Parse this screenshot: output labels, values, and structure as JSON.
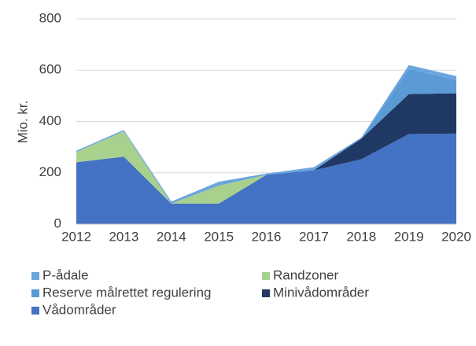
{
  "chart_data": {
    "type": "stacked-area",
    "y_label": "Mio. kr.",
    "x": [
      2012,
      2013,
      2014,
      2015,
      2016,
      2017,
      2018,
      2019,
      2020
    ],
    "xlim": [
      2012,
      2020
    ],
    "xticks": [
      2012,
      2013,
      2014,
      2015,
      2016,
      2017,
      2018,
      2019,
      2020
    ],
    "ylim": [
      0,
      800
    ],
    "yticks": [
      0,
      200,
      400,
      600,
      800
    ],
    "grid": true,
    "legend": "bottom",
    "series": [
      {
        "name": "Vådområder",
        "color": "#4472c4",
        "values": [
          241,
          263,
          80,
          80,
          192,
          210,
          253,
          351,
          353
        ]
      },
      {
        "name": "Minivådområder",
        "color": "#203864",
        "values": [
          0,
          0,
          0,
          0,
          0,
          0,
          80,
          156,
          157
        ]
      },
      {
        "name": "Reserve målrettet regulering",
        "color": "#5b9bd5",
        "values": [
          0,
          0,
          0,
          0,
          0,
          0,
          0,
          98,
          52
        ]
      },
      {
        "name": "Randzoner",
        "color": "#a9d18e",
        "values": [
          40,
          99,
          0,
          70,
          0,
          0,
          0,
          0,
          0
        ]
      },
      {
        "name": "P-ådale",
        "color": "#6aa5dc",
        "values": [
          5,
          5,
          8,
          15,
          5,
          12,
          4,
          15,
          15
        ]
      }
    ]
  }
}
